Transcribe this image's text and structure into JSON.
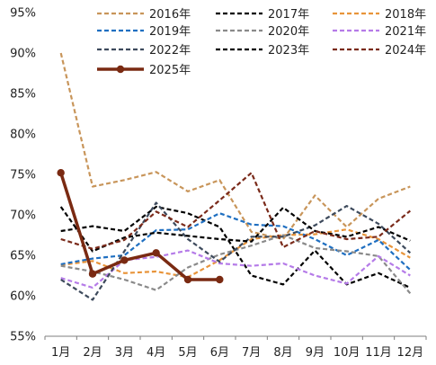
{
  "chart_data": {
    "type": "line",
    "title": "",
    "xlabel": "",
    "ylabel": "",
    "categories": [
      "1月",
      "2月",
      "3月",
      "4月",
      "5月",
      "6月",
      "7月",
      "8月",
      "9月",
      "10月",
      "11月",
      "12月"
    ],
    "ylim": [
      55,
      95
    ],
    "yticks": [
      55,
      60,
      65,
      70,
      75,
      80,
      85,
      90,
      95
    ],
    "ytick_labels": [
      "55%",
      "60%",
      "65%",
      "70%",
      "75%",
      "80%",
      "85%",
      "90%",
      "95%"
    ],
    "grid": false,
    "legend_position": "top",
    "series": [
      {
        "name": "2016年",
        "color": "#c8955a",
        "dash": "dashed",
        "values": [
          90.0,
          73.5,
          74.3,
          75.3,
          72.9,
          74.3,
          67.9,
          67.0,
          72.4,
          68.5,
          72.0,
          73.5
        ]
      },
      {
        "name": "2017年",
        "color": "#000000",
        "dash": "dashed",
        "values": [
          68.0,
          68.6,
          68.0,
          71.0,
          70.2,
          68.5,
          62.5,
          61.4,
          65.6,
          61.4,
          62.8,
          61.0
        ]
      },
      {
        "name": "2018年",
        "color": "#e8943a",
        "dash": "dashed",
        "values": [
          63.8,
          64.3,
          62.8,
          63.0,
          62.3,
          64.4,
          67.0,
          67.5,
          67.6,
          68.2,
          67.0,
          64.7
        ]
      },
      {
        "name": "2019年",
        "color": "#1f6fc1",
        "dash": "dashed",
        "values": [
          63.9,
          64.6,
          65.0,
          68.1,
          68.2,
          70.2,
          68.8,
          68.6,
          67.0,
          65.0,
          66.9,
          63.2
        ]
      },
      {
        "name": "2020年",
        "color": "#8a8a8a",
        "dash": "dashed",
        "values": [
          63.7,
          63.0,
          62.0,
          60.7,
          63.5,
          65.1,
          66.2,
          67.5,
          65.9,
          65.5,
          64.9,
          60.3
        ]
      },
      {
        "name": "2021年",
        "color": "#b57be8",
        "dash": "dashed",
        "values": [
          62.2,
          61.0,
          64.4,
          64.8,
          65.6,
          64.0,
          63.7,
          64.0,
          62.5,
          61.5,
          64.9,
          62.5
        ]
      },
      {
        "name": "2022年",
        "color": "#3d4a5c",
        "dash": "dashed",
        "values": [
          62.0,
          59.5,
          65.5,
          71.5,
          67.0,
          64.2,
          67.3,
          67.3,
          68.7,
          71.1,
          68.9,
          65.3
        ]
      },
      {
        "name": "2023年",
        "color": "#000000",
        "dash": "dashed",
        "values": [
          71.0,
          65.5,
          67.2,
          67.8,
          67.4,
          67.0,
          66.7,
          70.9,
          68.0,
          67.3,
          68.5,
          66.8
        ]
      },
      {
        "name": "2024年",
        "color": "#7a2a1a",
        "dash": "dashed",
        "values": [
          67.0,
          65.8,
          66.9,
          70.4,
          68.5,
          71.8,
          75.2,
          66.0,
          68.0,
          67.0,
          67.3,
          70.5
        ]
      },
      {
        "name": "2025年",
        "color": "#7a2a12",
        "dash": "solid",
        "values": [
          75.2,
          62.7,
          64.4,
          65.3,
          62.0,
          62.0,
          null,
          null,
          null,
          null,
          null,
          null
        ]
      }
    ]
  }
}
